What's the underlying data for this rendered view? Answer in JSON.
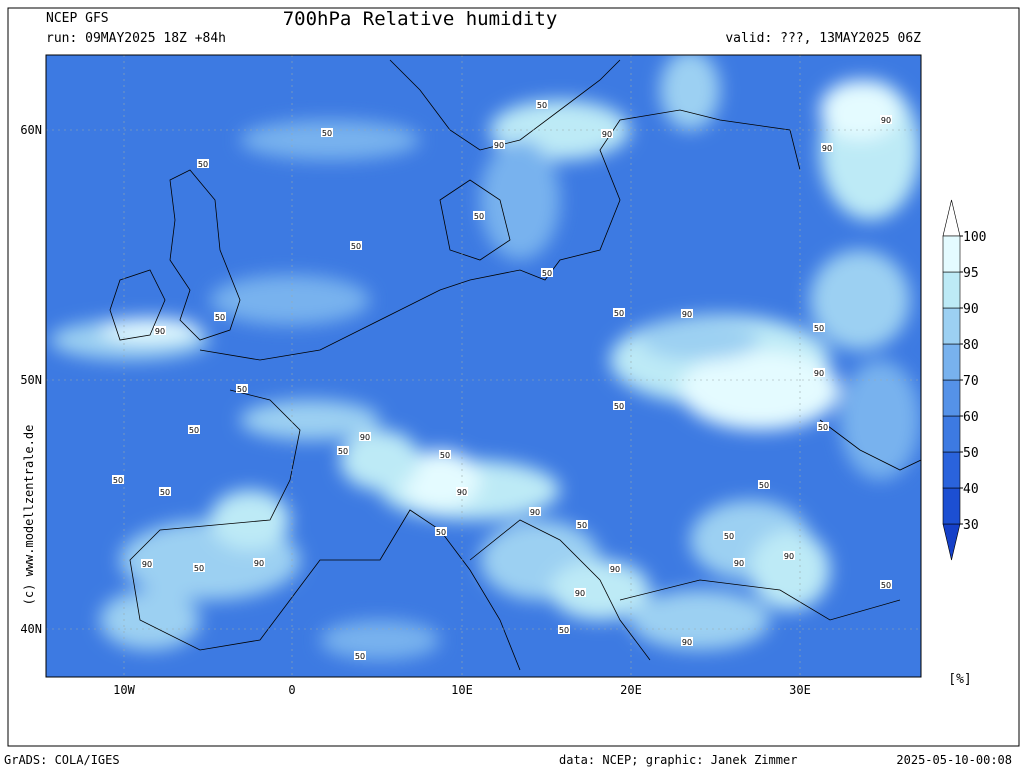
{
  "header": {
    "model": "NCEP GFS",
    "run": "run: 09MAY2025 18Z +84h",
    "title": "700hPa Relative humidity",
    "valid": "valid: ???, 13MAY2025 06Z"
  },
  "axes": {
    "lat_labels": [
      "60N",
      "50N",
      "40N"
    ],
    "lon_labels": [
      "10W",
      "0",
      "10E",
      "20E",
      "30E"
    ]
  },
  "colorbar": {
    "ticks": [
      30,
      40,
      50,
      60,
      70,
      80,
      90,
      95,
      100
    ],
    "colors": [
      "#1c4fd2",
      "#2a63dc",
      "#3d7ae2",
      "#5592e8",
      "#78b2ee",
      "#9cd0f2",
      "#bdeaf6",
      "#e4fbff"
    ],
    "unit": "[%]"
  },
  "contour_labels": [
    "50",
    "90",
    "90",
    "50",
    "50",
    "90",
    "90",
    "50",
    "50",
    "50",
    "50",
    "90",
    "50",
    "90",
    "50",
    "90",
    "50",
    "50",
    "50",
    "90",
    "50",
    "50",
    "50",
    "90",
    "50",
    "50",
    "50",
    "90",
    "50",
    "50",
    "50",
    "90",
    "50",
    "90",
    "90",
    "90",
    "90",
    "50",
    "90",
    "50",
    "90",
    "50"
  ],
  "side_text": "(c) www.modellzentrale.de",
  "footer": {
    "left": "GrADS: COLA/IGES",
    "center": "data: NCEP; graphic: Janek Zimmer",
    "right": "2025-05-10-00:08"
  }
}
